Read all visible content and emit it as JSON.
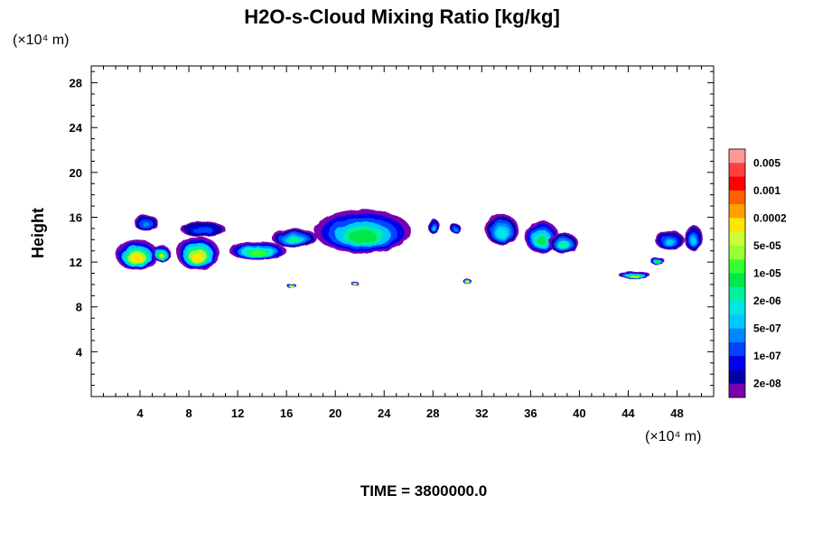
{
  "chart_data": {
    "type": "heatmap",
    "title": "H2O-s-Cloud Mixing Ratio [kg/kg]",
    "ylabel": "Height",
    "x_unit": "(×10⁴ m)",
    "y_unit": "(×10⁴ m)",
    "xlim": [
      0,
      51
    ],
    "ylim": [
      0,
      29.5
    ],
    "x_ticks": [
      4,
      8,
      12,
      16,
      20,
      24,
      28,
      32,
      36,
      40,
      44,
      48
    ],
    "y_ticks": [
      4,
      8,
      12,
      16,
      20,
      24,
      28
    ],
    "colorbar": {
      "labels": [
        "0.005",
        "0.001",
        "0.0002",
        "5e-05",
        "1e-05",
        "2e-06",
        "5e-07",
        "1e-07",
        "2e-08"
      ],
      "colors": [
        "#ff9999",
        "#ff4040",
        "#ff0000",
        "#ff6000",
        "#ffa000",
        "#ffe600",
        "#ccff33",
        "#99ff33",
        "#33ff33",
        "#00e84a",
        "#00f0a0",
        "#00e5e5",
        "#00c8ff",
        "#0088ff",
        "#0044ff",
        "#0000ee",
        "#0000a8",
        "#7a00b0"
      ]
    },
    "footer": "TIME = 3800000.0",
    "cloud_regions": [
      {
        "x": [
          3.5,
          5.5
        ],
        "y": [
          14.8,
          16.2
        ],
        "peak": 0.25
      },
      {
        "x": [
          2.0,
          5.5
        ],
        "y": [
          11.3,
          14.0
        ],
        "peak": 0.7
      },
      {
        "x": [
          5.0,
          6.5
        ],
        "y": [
          12.0,
          13.5
        ],
        "peak": 0.6
      },
      {
        "x": [
          7.3,
          11.0
        ],
        "y": [
          14.3,
          15.6
        ],
        "peak": 0.2
      },
      {
        "x": [
          7.0,
          10.5
        ],
        "y": [
          11.3,
          14.3
        ],
        "peak": 0.72
      },
      {
        "x": [
          11.3,
          16.0
        ],
        "y": [
          12.2,
          13.8
        ],
        "peak": 0.55
      },
      {
        "x": [
          14.8,
          18.5
        ],
        "y": [
          13.3,
          15.0
        ],
        "peak": 0.4
      },
      {
        "x": [
          18.3,
          26.2
        ],
        "y": [
          12.8,
          16.7
        ],
        "peak": 0.5
      },
      {
        "x": [
          16.0,
          16.8
        ],
        "y": [
          9.7,
          10.1
        ],
        "peak": 0.72
      },
      {
        "x": [
          21.3,
          21.9
        ],
        "y": [
          9.9,
          10.3
        ],
        "peak": 0.72
      },
      {
        "x": [
          27.6,
          28.6
        ],
        "y": [
          14.5,
          15.8
        ],
        "peak": 0.3
      },
      {
        "x": [
          29.4,
          30.3
        ],
        "y": [
          14.6,
          15.4
        ],
        "peak": 0.25
      },
      {
        "x": [
          30.5,
          31.2
        ],
        "y": [
          10.0,
          10.5
        ],
        "peak": 0.72
      },
      {
        "x": [
          32.3,
          35.0
        ],
        "y": [
          13.5,
          16.3
        ],
        "peak": 0.38
      },
      {
        "x": [
          35.5,
          38.3
        ],
        "y": [
          12.8,
          15.7
        ],
        "peak": 0.45
      },
      {
        "x": [
          37.5,
          39.9
        ],
        "y": [
          12.8,
          14.6
        ],
        "peak": 0.42
      },
      {
        "x": [
          43.2,
          45.8
        ],
        "y": [
          10.5,
          11.2
        ],
        "peak": 0.6
      },
      {
        "x": [
          45.8,
          47.0
        ],
        "y": [
          11.8,
          12.4
        ],
        "peak": 0.5
      },
      {
        "x": [
          46.2,
          48.6
        ],
        "y": [
          13.1,
          14.8
        ],
        "peak": 0.3
      },
      {
        "x": [
          48.6,
          50.1
        ],
        "y": [
          13.0,
          15.3
        ],
        "peak": 0.3
      }
    ]
  }
}
